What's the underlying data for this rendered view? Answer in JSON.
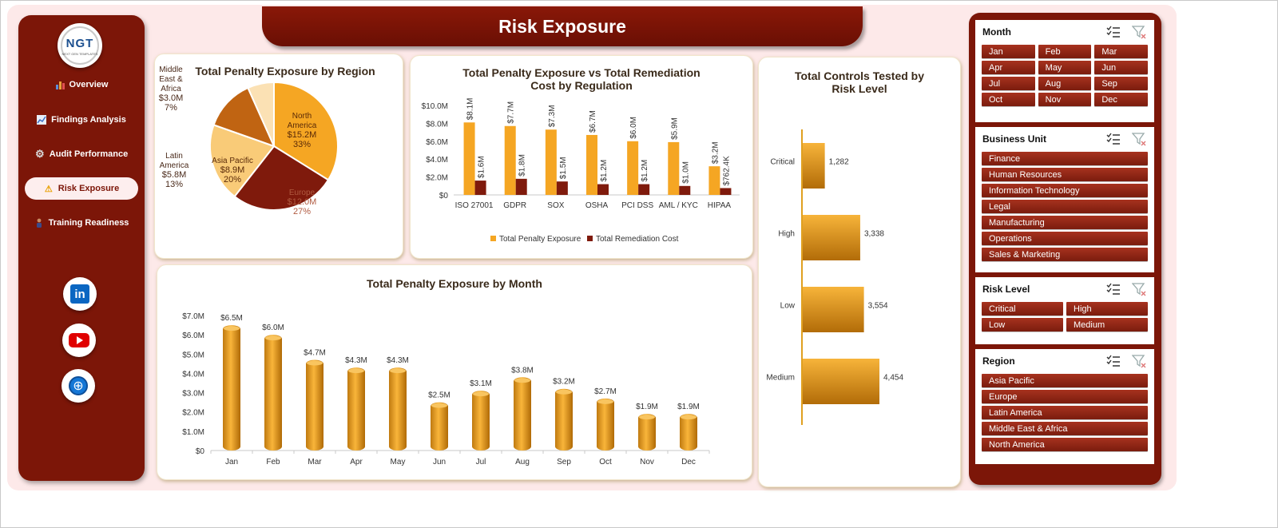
{
  "title": "Risk Exposure",
  "logo": {
    "text": "NGT",
    "tagline": "NEXT GEN TEMPLATES"
  },
  "nav": {
    "items": [
      {
        "label": "Overview",
        "icon": "bar-chart-icon"
      },
      {
        "label": "Findings Analysis",
        "icon": "line-chart-icon"
      },
      {
        "label": "Audit Performance",
        "icon": "gear-icon"
      },
      {
        "label": "Risk Exposure",
        "icon": "warning-icon",
        "active": true
      },
      {
        "label": "Training Readiness",
        "icon": "person-icon"
      }
    ],
    "social": [
      "linkedin-icon",
      "youtube-icon",
      "globe-icon"
    ]
  },
  "colors": {
    "maroon": "#7c1608",
    "gold": "#f5a623",
    "dark_red": "#7f1a0c",
    "tan": "#f8dca8",
    "brown": "#c06412",
    "panel_bg": "#fde9e9"
  },
  "charts": {
    "region": {
      "title": "Total Penalty Exposure by Region",
      "chart_data": {
        "type": "pie",
        "slices": [
          {
            "name": "North America",
            "value": 15.2,
            "label": "$15.2M",
            "pct": "33%",
            "color": "#f5a623"
          },
          {
            "name": "Europe",
            "value": 12.0,
            "label": "$12.0M",
            "pct": "27%",
            "color": "#7f1a0c"
          },
          {
            "name": "Asia Pacific",
            "value": 8.9,
            "label": "$8.9M",
            "pct": "20%",
            "color": "#f9cb78"
          },
          {
            "name": "Latin America",
            "value": 5.8,
            "label": "$5.8M",
            "pct": "13%",
            "color": "#c06412"
          },
          {
            "name": "Middle East & Africa",
            "value": 3.0,
            "label": "$3.0M",
            "pct": "7%",
            "color": "#fbe1b4"
          }
        ]
      }
    },
    "regulation": {
      "title": "Total Penalty Exposure vs Total Remediation Cost by Regulation",
      "title_lines": [
        "Total Penalty Exposure vs Total Remediation",
        "Cost by Regulation"
      ],
      "chart_data": {
        "type": "bar",
        "categories": [
          "ISO 27001",
          "GDPR",
          "SOX",
          "OSHA",
          "PCI DSS",
          "AML / KYC",
          "HIPAA"
        ],
        "series": [
          {
            "name": "Total Penalty Exposure",
            "color": "#f5a623",
            "values": [
              8.1,
              7.7,
              7.3,
              6.7,
              6.0,
              5.9,
              3.2
            ],
            "labels": [
              "$8.1M",
              "$7.7M",
              "$7.3M",
              "$6.7M",
              "$6.0M",
              "$5.9M",
              "$3.2M"
            ]
          },
          {
            "name": "Total Remediation Cost",
            "color": "#7f1a0c",
            "values": [
              1.6,
              1.8,
              1.5,
              1.2,
              1.2,
              1.0,
              0.7624
            ],
            "labels": [
              "$1.6M",
              "$1.8M",
              "$1.5M",
              "$1.2M",
              "$1.2M",
              "$1.0M",
              "$762.4K"
            ]
          }
        ],
        "y_ticks": [
          "$0",
          "$2.0M",
          "$4.0M",
          "$6.0M",
          "$8.0M",
          "$10.0M"
        ],
        "ylim": [
          0,
          10
        ],
        "legend": "bottom"
      }
    },
    "risk_level": {
      "title": "Total Controls Tested by Risk Level",
      "title_lines": [
        "Total Controls Tested by",
        "Risk Level"
      ],
      "chart_data": {
        "type": "bar",
        "orientation": "horizontal",
        "categories": [
          "Critical",
          "High",
          "Low",
          "Medium"
        ],
        "values": [
          1282,
          3338,
          3554,
          4454
        ],
        "labels": [
          "1,282",
          "3,338",
          "3,554",
          "4,454"
        ]
      }
    },
    "month": {
      "title": "Total Penalty Exposure by Month",
      "chart_data": {
        "type": "bar",
        "categories": [
          "Jan",
          "Feb",
          "Mar",
          "Apr",
          "May",
          "Jun",
          "Jul",
          "Aug",
          "Sep",
          "Oct",
          "Nov",
          "Dec"
        ],
        "values": [
          6.5,
          6.0,
          4.7,
          4.3,
          4.3,
          2.5,
          3.1,
          3.8,
          3.2,
          2.7,
          1.9,
          1.9
        ],
        "labels": [
          "$6.5M",
          "$6.0M",
          "$4.7M",
          "$4.3M",
          "$4.3M",
          "$2.5M",
          "$3.1M",
          "$3.8M",
          "$3.2M",
          "$2.7M",
          "$1.9M",
          "$1.9M"
        ],
        "y_ticks": [
          "$0",
          "$1.0M",
          "$2.0M",
          "$3.0M",
          "$4.0M",
          "$5.0M",
          "$6.0M",
          "$7.0M"
        ],
        "ylim": [
          0,
          7
        ]
      }
    }
  },
  "slicers": [
    {
      "title": "Month",
      "columns": 3,
      "items": [
        "Jan",
        "Feb",
        "Mar",
        "Apr",
        "May",
        "Jun",
        "Jul",
        "Aug",
        "Sep",
        "Oct",
        "Nov",
        "Dec"
      ]
    },
    {
      "title": "Business Unit",
      "columns": 1,
      "items": [
        "Finance",
        "Human Resources",
        "Information Technology",
        "Legal",
        "Manufacturing",
        "Operations",
        "Sales & Marketing"
      ]
    },
    {
      "title": "Risk Level",
      "columns": 2,
      "items": [
        "Critical",
        "High",
        "Low",
        "Medium"
      ]
    },
    {
      "title": "Region",
      "columns": 1,
      "items": [
        "Asia Pacific",
        "Europe",
        "Latin America",
        "Middle East & Africa",
        "North America"
      ]
    }
  ]
}
